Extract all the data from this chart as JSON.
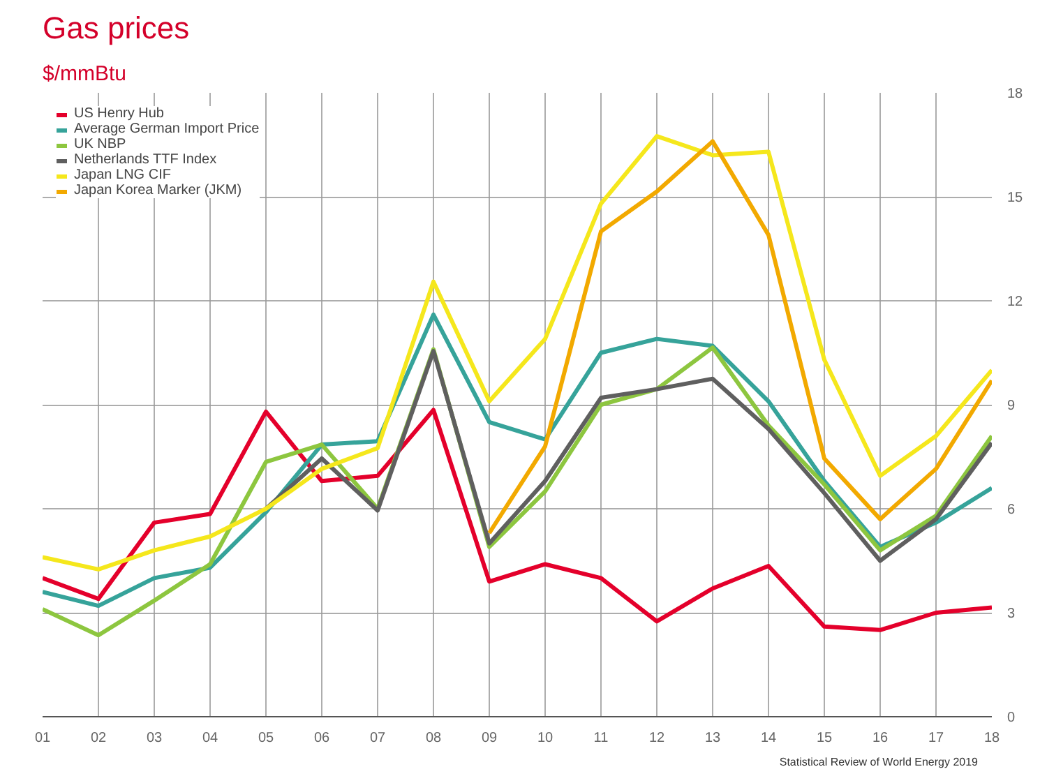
{
  "chart_data": {
    "type": "line",
    "title": "Gas prices",
    "subtitle": "$/mmBtu",
    "categories": [
      "01",
      "02",
      "03",
      "04",
      "05",
      "06",
      "07",
      "08",
      "09",
      "10",
      "11",
      "12",
      "13",
      "14",
      "15",
      "16",
      "17",
      "18"
    ],
    "series": [
      {
        "name": "US Henry Hub",
        "color": "#e4002b",
        "values": [
          4.0,
          3.4,
          5.6,
          5.85,
          8.8,
          6.8,
          6.95,
          8.85,
          3.9,
          4.4,
          4.0,
          2.75,
          3.7,
          4.35,
          2.6,
          2.5,
          3.0,
          3.15
        ]
      },
      {
        "name": "Average German Import Price",
        "color": "#36a39a",
        "values": [
          3.6,
          3.2,
          4.0,
          4.3,
          5.9,
          7.85,
          7.95,
          11.6,
          8.5,
          8.0,
          10.5,
          10.9,
          10.7,
          9.1,
          6.8,
          4.9,
          5.6,
          6.6
        ]
      },
      {
        "name": "UK NBP",
        "color": "#8dc63f",
        "values": [
          3.1,
          2.35,
          3.35,
          4.4,
          7.35,
          7.85,
          6.0,
          10.6,
          4.9,
          6.5,
          9.0,
          9.45,
          10.65,
          8.4,
          6.7,
          4.8,
          5.8,
          8.1
        ]
      },
      {
        "name": "Netherlands TTF Index",
        "color": "#5f5f5f",
        "values": [
          null,
          null,
          null,
          null,
          6.0,
          7.45,
          5.95,
          10.55,
          5.0,
          6.8,
          9.2,
          9.45,
          9.75,
          8.3,
          6.45,
          4.5,
          5.7,
          7.9
        ]
      },
      {
        "name": "Japan LNG CIF",
        "color": "#f5e71c",
        "values": [
          4.6,
          4.25,
          4.8,
          5.2,
          6.0,
          7.15,
          7.75,
          12.55,
          9.1,
          10.9,
          14.8,
          16.75,
          16.2,
          16.3,
          10.3,
          6.95,
          8.1,
          10.0
        ]
      },
      {
        "name": "Japan Korea Marker (JKM)",
        "color": "#f2a900",
        "values": [
          null,
          null,
          null,
          null,
          null,
          null,
          null,
          null,
          5.3,
          7.8,
          14.0,
          15.15,
          16.6,
          13.9,
          7.45,
          5.7,
          7.15,
          9.7
        ]
      }
    ],
    "ylim": [
      0,
      18
    ],
    "yticks": [
      0,
      3,
      6,
      9,
      12,
      15,
      18
    ],
    "grid": true,
    "legend": "top left",
    "marker": "none",
    "line_style": "solid",
    "annotations": [
      "Statistical Review of World Energy 2019"
    ]
  }
}
